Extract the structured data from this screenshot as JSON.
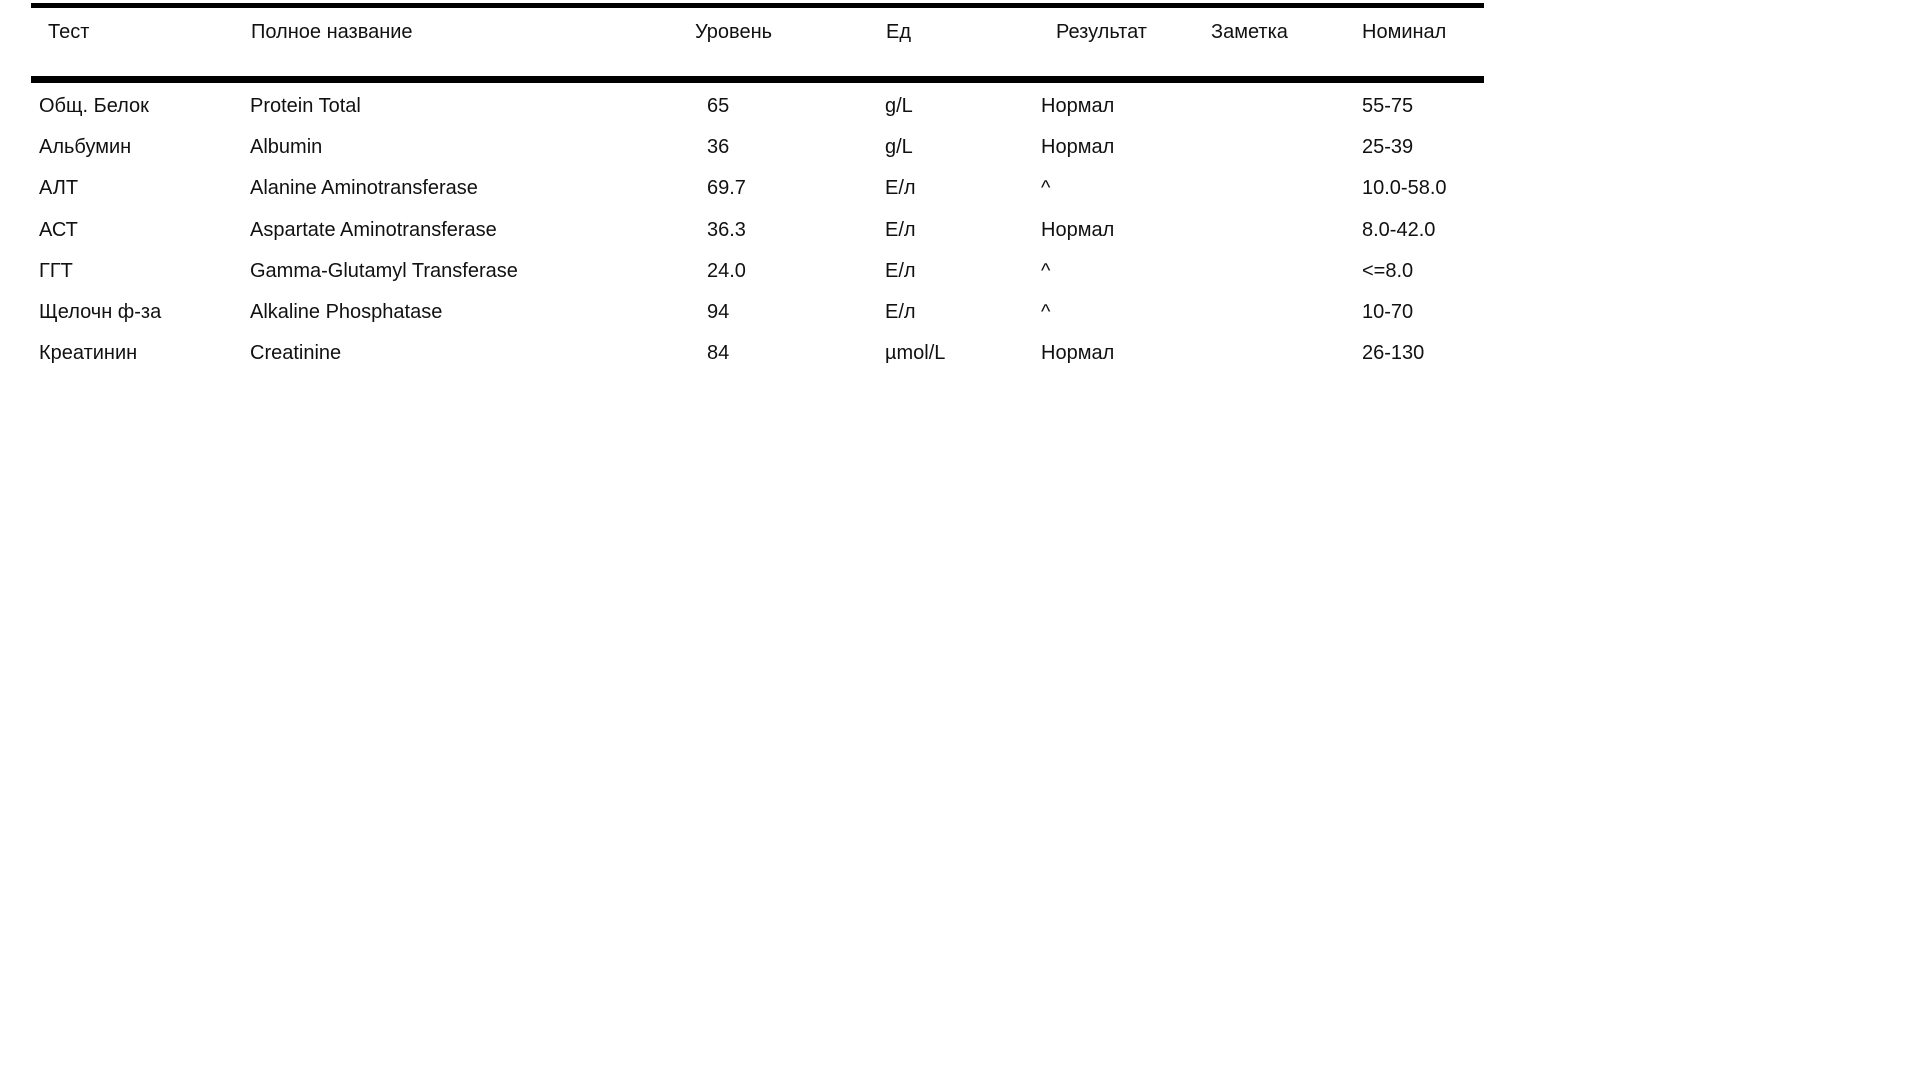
{
  "table": {
    "border_color": "#000000",
    "text_color": "#111111",
    "columns": [
      {
        "key": "test",
        "label": "Тест"
      },
      {
        "key": "full_name",
        "label": "Полное название"
      },
      {
        "key": "level",
        "label": "Уровень"
      },
      {
        "key": "unit",
        "label": "Ед"
      },
      {
        "key": "result",
        "label": "Результат"
      },
      {
        "key": "note",
        "label": "Заметка"
      },
      {
        "key": "nominal",
        "label": "Номинал"
      }
    ],
    "rows": [
      {
        "test": "Общ. Белок",
        "full_name": "Protein Total",
        "level": "65",
        "unit": "g/L",
        "result": "Нормал",
        "note": "",
        "nominal": "55-75"
      },
      {
        "test": "Альбумин",
        "full_name": "Albumin",
        "level": "36",
        "unit": "g/L",
        "result": "Нормал",
        "note": "",
        "nominal": "25-39"
      },
      {
        "test": "АЛТ",
        "full_name": "Alanine Aminotransferase",
        "level": "69.7",
        "unit": "Е/л",
        "result": "^",
        "note": "",
        "nominal": "10.0-58.0"
      },
      {
        "test": "АСТ",
        "full_name": "Aspartate Aminotransferase",
        "level": "36.3",
        "unit": "Е/л",
        "result": "Нормал",
        "note": "",
        "nominal": "8.0-42.0"
      },
      {
        "test": "ГГТ",
        "full_name": "Gamma-Glutamyl Transferase",
        "level": "24.0",
        "unit": "Е/л",
        "result": "^",
        "note": "",
        "nominal": "<=8.0"
      },
      {
        "test": "Щелочн ф-за",
        "full_name": "Alkaline Phosphatase",
        "level": "94",
        "unit": "Е/л",
        "result": "^",
        "note": "",
        "nominal": "10-70"
      },
      {
        "test": "Креатинин",
        "full_name": "Creatinine",
        "level": "84",
        "unit": "µmol/L",
        "result": "Нормал",
        "note": "",
        "nominal": "26-130"
      }
    ]
  }
}
